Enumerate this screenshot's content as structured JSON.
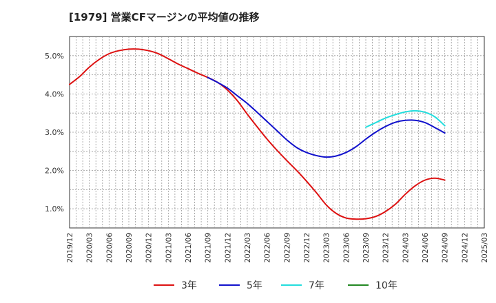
{
  "title": "[1979]  営業CFマージンの平均値の推移",
  "chart_data": {
    "type": "line",
    "title": "[1979]  営業CFマージンの平均値の推移",
    "xlabel": "",
    "ylabel": "",
    "x_ticks": [
      "2019/12",
      "2020/03",
      "2020/06",
      "2020/09",
      "2020/12",
      "2021/03",
      "2021/06",
      "2021/09",
      "2021/12",
      "2022/03",
      "2022/06",
      "2022/09",
      "2022/12",
      "2023/03",
      "2023/06",
      "2023/09",
      "2023/12",
      "2024/03",
      "2024/06",
      "2024/09",
      "2024/12",
      "2025/03"
    ],
    "y_ticks": [
      "1.0%",
      "2.0%",
      "3.0%",
      "4.0%",
      "5.0%"
    ],
    "y_tick_values": [
      1.0,
      2.0,
      3.0,
      4.0,
      5.0
    ],
    "ylim": [
      0.5,
      5.5
    ],
    "grid": true,
    "legend_position": "bottom",
    "series": [
      {
        "name": "3年",
        "color": "#dd1111",
        "x": [
          0,
          0.5,
          1,
          1.5,
          2,
          2.5,
          3,
          3.5,
          4,
          4.5,
          5,
          5.5,
          6,
          6.5,
          7,
          7.5,
          8,
          8.5,
          9,
          9.5,
          10,
          10.5,
          11,
          11.5,
          12,
          12.5,
          13,
          13.5,
          14,
          14.5,
          15,
          15.5,
          16,
          16.5,
          17,
          17.5,
          18,
          18.5,
          19
        ],
        "values": [
          4.25,
          4.45,
          4.7,
          4.9,
          5.05,
          5.13,
          5.17,
          5.17,
          5.13,
          5.05,
          4.92,
          4.78,
          4.66,
          4.54,
          4.43,
          4.3,
          4.1,
          3.82,
          3.47,
          3.14,
          2.82,
          2.53,
          2.26,
          2.0,
          1.72,
          1.42,
          1.1,
          0.88,
          0.76,
          0.73,
          0.74,
          0.8,
          0.93,
          1.12,
          1.38,
          1.6,
          1.75,
          1.8,
          1.75
        ]
      },
      {
        "name": "5年",
        "color": "#1111cc",
        "x": [
          7,
          7.5,
          8,
          8.5,
          9,
          9.5,
          10,
          10.5,
          11,
          11.5,
          12,
          12.5,
          13,
          13.5,
          14,
          14.5,
          15,
          15.5,
          16,
          16.5,
          17,
          17.5,
          18,
          18.5,
          19
        ],
        "values": [
          4.43,
          4.3,
          4.15,
          3.95,
          3.75,
          3.52,
          3.28,
          3.04,
          2.8,
          2.6,
          2.47,
          2.39,
          2.35,
          2.38,
          2.47,
          2.62,
          2.82,
          3.0,
          3.15,
          3.26,
          3.31,
          3.31,
          3.25,
          3.12,
          2.98
        ]
      },
      {
        "name": "7年",
        "color": "#22dddd",
        "x": [
          15,
          15.5,
          16,
          16.5,
          17,
          17.5,
          18,
          18.5,
          19
        ],
        "values": [
          3.13,
          3.25,
          3.37,
          3.46,
          3.53,
          3.56,
          3.52,
          3.4,
          3.17
        ]
      },
      {
        "name": "10年",
        "color": "#228822",
        "x": [],
        "values": []
      }
    ]
  }
}
